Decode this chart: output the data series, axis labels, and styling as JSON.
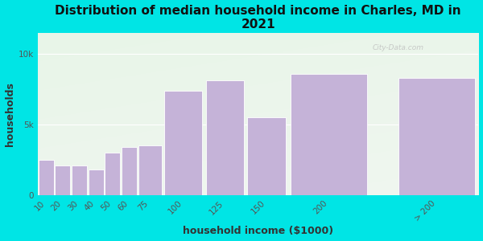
{
  "title": "Distribution of median household income in Charles, MD in\n2021",
  "xlabel": "household income ($1000)",
  "ylabel": "households",
  "categories": [
    "10",
    "20",
    "30",
    "40",
    "50",
    "60",
    "75",
    "100",
    "125",
    "150",
    "200",
    "> 200"
  ],
  "values": [
    2500,
    2100,
    2100,
    1800,
    3000,
    3400,
    3500,
    7400,
    8100,
    5500,
    8600,
    8300
  ],
  "bar_lefts": [
    0,
    10,
    20,
    30,
    40,
    50,
    60,
    75,
    100,
    125,
    150,
    215
  ],
  "bar_widths": [
    10,
    10,
    10,
    10,
    10,
    10,
    15,
    25,
    25,
    25,
    50,
    50
  ],
  "bar_color": "#c5b3d8",
  "bar_edge_color": "#ffffff",
  "background_color": "#00e5e5",
  "plot_bg_top_left": "#e8f5e8",
  "plot_bg_bottom_right": "#f8f8f8",
  "ytick_labels": [
    "0",
    "5k",
    "10k"
  ],
  "ytick_values": [
    0,
    5000,
    10000
  ],
  "ylim": [
    0,
    11500
  ],
  "xlim": [
    0,
    265
  ],
  "xtick_positions": [
    5,
    15,
    25,
    35,
    45,
    55,
    67.5,
    87.5,
    112.5,
    137.5,
    175,
    240
  ],
  "xtick_labels": [
    "10",
    "20",
    "30",
    "40",
    "50",
    "60",
    "75",
    "100",
    "125",
    "150",
    "200",
    "> 200"
  ],
  "watermark": "City-Data.com",
  "title_fontsize": 11,
  "axis_label_fontsize": 9,
  "tick_fontsize": 7.5
}
